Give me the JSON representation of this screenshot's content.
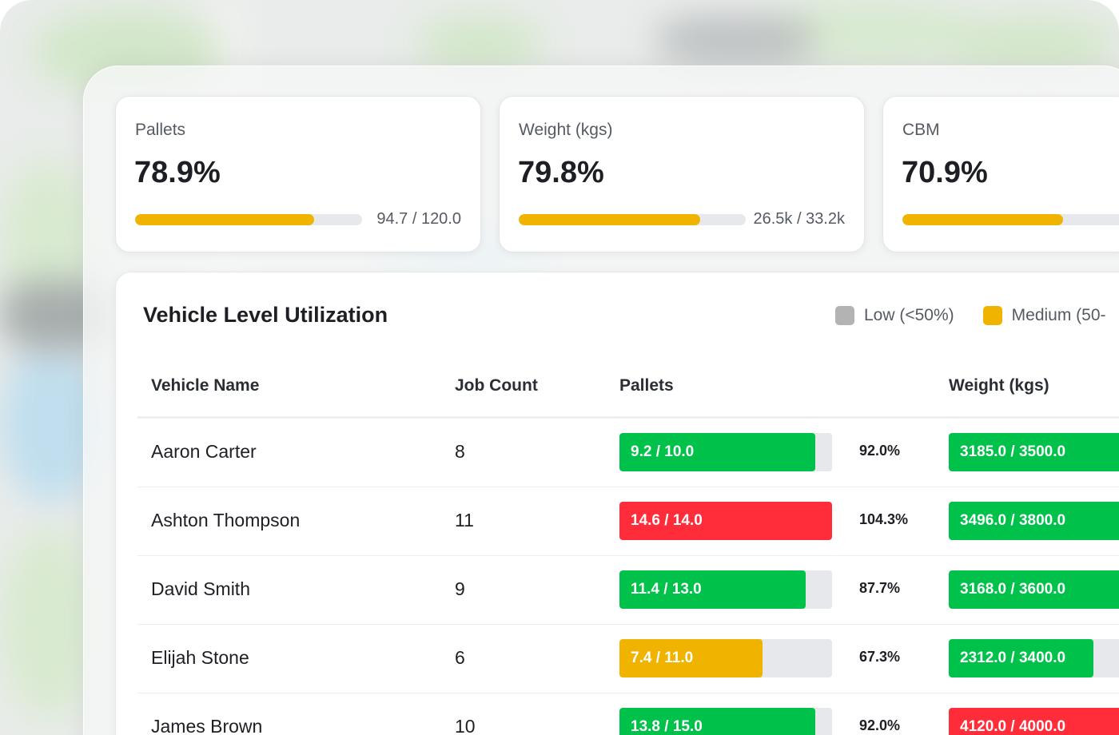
{
  "colors": {
    "low": "#b3b3b3",
    "medium": "#f0b400",
    "high": "#00c24a",
    "over": "#ff2d3a",
    "track": "#e7e8eb"
  },
  "kpis": [
    {
      "label": "Pallets",
      "value": "78.9%",
      "ratio": "94.7 / 120.0",
      "fill": 0.789
    },
    {
      "label": "Weight (kgs)",
      "value": "79.8%",
      "ratio": "26.5k / 33.2k",
      "fill": 0.798
    },
    {
      "label": "CBM",
      "value": "70.9%",
      "ratio": "",
      "fill": 0.709
    }
  ],
  "panel": {
    "title": "Vehicle Level Utilization",
    "legend": [
      {
        "label": "Low (<50%)",
        "color_key": "low"
      },
      {
        "label": "Medium (50-",
        "color_key": "medium"
      }
    ],
    "columns": {
      "name": "Vehicle Name",
      "jobs": "Job Count",
      "pallets": "Pallets",
      "weight": "Weight (kgs)"
    },
    "rows": [
      {
        "name": "Aaron Carter",
        "jobs": "8",
        "pallets": {
          "text": "9.2 / 10.0",
          "fill": 0.92,
          "level": "high"
        },
        "pallets_pct": "92.0%",
        "weight": {
          "text": "3185.0 / 3500.0",
          "fill": 0.91,
          "level": "high"
        }
      },
      {
        "name": "Ashton Thompson",
        "jobs": "11",
        "pallets": {
          "text": "14.6 / 14.0",
          "fill": 1.0,
          "level": "over"
        },
        "pallets_pct": "104.3%",
        "weight": {
          "text": "3496.0 / 3800.0",
          "fill": 0.92,
          "level": "high"
        }
      },
      {
        "name": "David Smith",
        "jobs": "9",
        "pallets": {
          "text": "11.4 / 13.0",
          "fill": 0.877,
          "level": "high"
        },
        "pallets_pct": "87.7%",
        "weight": {
          "text": "3168.0 / 3600.0",
          "fill": 0.88,
          "level": "high"
        }
      },
      {
        "name": "Elijah Stone",
        "jobs": "6",
        "pallets": {
          "text": "7.4 / 11.0",
          "fill": 0.673,
          "level": "medium"
        },
        "pallets_pct": "67.3%",
        "weight": {
          "text": "2312.0 / 3400.0",
          "fill": 0.68,
          "level": "high"
        }
      },
      {
        "name": "James Brown",
        "jobs": "10",
        "pallets": {
          "text": "13.8 / 15.0",
          "fill": 0.92,
          "level": "high"
        },
        "pallets_pct": "92.0%",
        "weight": {
          "text": "4120.0 / 4000.0",
          "fill": 1.0,
          "level": "over"
        }
      }
    ]
  }
}
